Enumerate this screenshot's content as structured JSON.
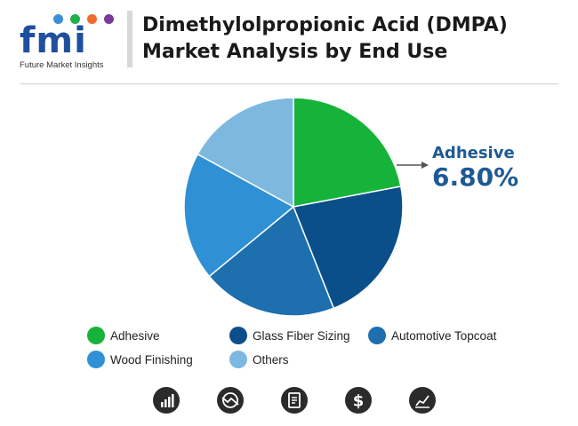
{
  "header": {
    "logo_text": "fmi",
    "logo_subtext": "Future Market Insights",
    "title": "Dimethylolpropionic Acid (DMPA) Market Analysis by End Use"
  },
  "chart_data": {
    "type": "pie",
    "categories": [
      "Adhesive",
      "Glass Fiber Sizing",
      "Automotive Topcoat",
      "Wood Finishing",
      "Others"
    ],
    "values": [
      22,
      22,
      20,
      19,
      17
    ],
    "colors": [
      "#16b33a",
      "#0b4f8a",
      "#1d6fae",
      "#2f90d5",
      "#7db8e0"
    ],
    "callout": {
      "label": "Adhesive",
      "value": "6.80%"
    }
  },
  "legend": [
    {
      "label": "Adhesive",
      "color": "#16b33a"
    },
    {
      "label": "Glass Fiber Sizing",
      "color": "#0b4f8a"
    },
    {
      "label": "Automotive Topcoat",
      "color": "#1d6fae"
    },
    {
      "label": "Wood Finishing",
      "color": "#2f90d5"
    },
    {
      "label": "Others",
      "color": "#7db8e0"
    }
  ],
  "footer_icons": [
    "bar-chart-icon",
    "trend-globe-icon",
    "document-icon",
    "dollar-icon",
    "line-chart-icon"
  ]
}
